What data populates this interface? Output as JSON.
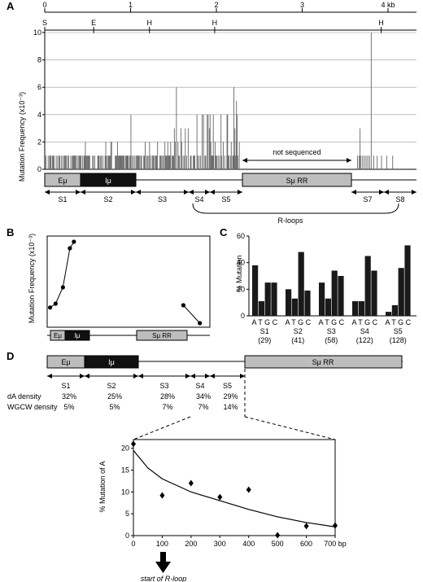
{
  "panels": {
    "A": {
      "letter": "A",
      "kb_ticks": [
        "0",
        "1",
        "2",
        "3",
        "4 kb"
      ],
      "restriction_sites": [
        "S",
        "E",
        "H",
        "H",
        "H"
      ],
      "ylabel": "Mutation Frequency (x10⁻³)",
      "ylim": [
        0,
        10
      ],
      "yticks": [
        "0",
        "2",
        "4",
        "6",
        "8",
        "10"
      ],
      "not_sequenced_label": "not sequenced",
      "gene_boxes": [
        "Eμ",
        "Iμ",
        "Sμ  RR"
      ],
      "segments": [
        "S1",
        "S2",
        "S3",
        "S4",
        "S5",
        "S7",
        "S8"
      ],
      "rloops_label": "R-loops"
    },
    "B": {
      "letter": "B",
      "ylabel": "Mutation Frequency (x10⁻³)",
      "gene_boxes": [
        "Eμ",
        "Iμ",
        "Sμ RR"
      ]
    },
    "C": {
      "letter": "C",
      "ylabel": "% Mutation",
      "yticks": [
        "0",
        "20",
        "40",
        "60"
      ],
      "bases_label": "A T G C"
    },
    "D": {
      "letter": "D",
      "gene_boxes": [
        "Eμ",
        "Iμ",
        "Sμ RR"
      ],
      "segments": [
        "S1",
        "S2",
        "S3",
        "S4",
        "S5"
      ],
      "row1_label": "dA density",
      "row2_label": "WGCW density",
      "dA_density": [
        "32%",
        "25%",
        "28%",
        "34%",
        "29%"
      ],
      "wgcw_density": [
        "5%",
        "5%",
        "7%",
        "7%",
        "14%"
      ],
      "ylabel": "% Mutation of A",
      "yticks": [
        "0",
        "5",
        "10",
        "15",
        "20"
      ],
      "xticks": [
        "0",
        "100",
        "200",
        "300",
        "400",
        "500",
        "600",
        "700 bp"
      ],
      "arrow_label": "start of R-loop"
    }
  },
  "chart_data": [
    {
      "type": "bar",
      "panel": "A",
      "ylabel": "Mutation Frequency (x10⁻³)",
      "ylim": [
        0,
        10
      ],
      "x_unit": "kb",
      "xlim": [
        0,
        4.3
      ],
      "grid": true,
      "bars_sequenced_regions": [
        [
          0.0,
          2.27
        ],
        [
          3.63,
          4.3
        ]
      ],
      "notable_bars": [
        {
          "x": 1.0,
          "value": 4
        },
        {
          "x": 1.53,
          "value": 6
        },
        {
          "x": 1.83,
          "value": 4
        },
        {
          "x": 1.9,
          "value": 4
        },
        {
          "x": 1.96,
          "value": 4
        },
        {
          "x": 2.12,
          "value": 4
        },
        {
          "x": 2.2,
          "value": 6
        },
        {
          "x": 2.23,
          "value": 5
        },
        {
          "x": 3.67,
          "value": 3
        },
        {
          "x": 3.8,
          "value": 10
        }
      ]
    },
    {
      "type": "line",
      "panel": "B",
      "ylabel": "Mutation Frequency (x10⁻³)",
      "series": [
        {
          "points": [
            [
              0.08,
              0.48
            ],
            [
              0.23,
              0.6
            ],
            [
              0.43,
              1.1
            ],
            [
              0.62,
              2.3
            ],
            [
              0.73,
              2.5
            ]
          ]
        },
        {
          "points": [
            [
              3.72,
              0.55
            ],
            [
              4.17,
              0.0
            ]
          ]
        }
      ]
    },
    {
      "type": "bar",
      "panel": "C",
      "ylabel": "% Mutation",
      "ylim": [
        0,
        60
      ],
      "categories": [
        "S1\n(29)",
        "S2\n(41)",
        "S3\n(58)",
        "S4\n(122)",
        "S5\n(128)"
      ],
      "groups": [
        {
          "label": "S1",
          "n": "(29)",
          "A": 38,
          "T": 11,
          "G": 25,
          "C": 25
        },
        {
          "label": "S2",
          "n": "(41)",
          "A": 20,
          "T": 13,
          "G": 48,
          "C": 19
        },
        {
          "label": "S3",
          "n": "(58)",
          "A": 25,
          "T": 13,
          "G": 34,
          "C": 30
        },
        {
          "label": "S4",
          "n": "(122)",
          "A": 11,
          "T": 11,
          "G": 45,
          "C": 34
        },
        {
          "label": "S5",
          "n": "(128)",
          "A": 3,
          "T": 8,
          "G": 36,
          "C": 53
        }
      ]
    },
    {
      "type": "scatter",
      "panel": "D",
      "ylabel": "% Mutation of A",
      "xlim": [
        0,
        700
      ],
      "ylim": [
        0,
        20
      ],
      "points": [
        [
          0,
          21
        ],
        [
          100,
          9.2
        ],
        [
          200,
          12
        ],
        [
          300,
          8.8
        ],
        [
          400,
          10.5
        ],
        [
          500,
          0.1
        ],
        [
          600,
          2.2
        ],
        [
          700,
          2.3
        ]
      ],
      "fit_curve": [
        [
          0,
          19.5
        ],
        [
          50,
          15.5
        ],
        [
          100,
          13
        ],
        [
          200,
          10
        ],
        [
          300,
          8
        ],
        [
          400,
          6
        ],
        [
          500,
          4.3
        ],
        [
          600,
          3
        ],
        [
          700,
          2
        ]
      ]
    }
  ]
}
